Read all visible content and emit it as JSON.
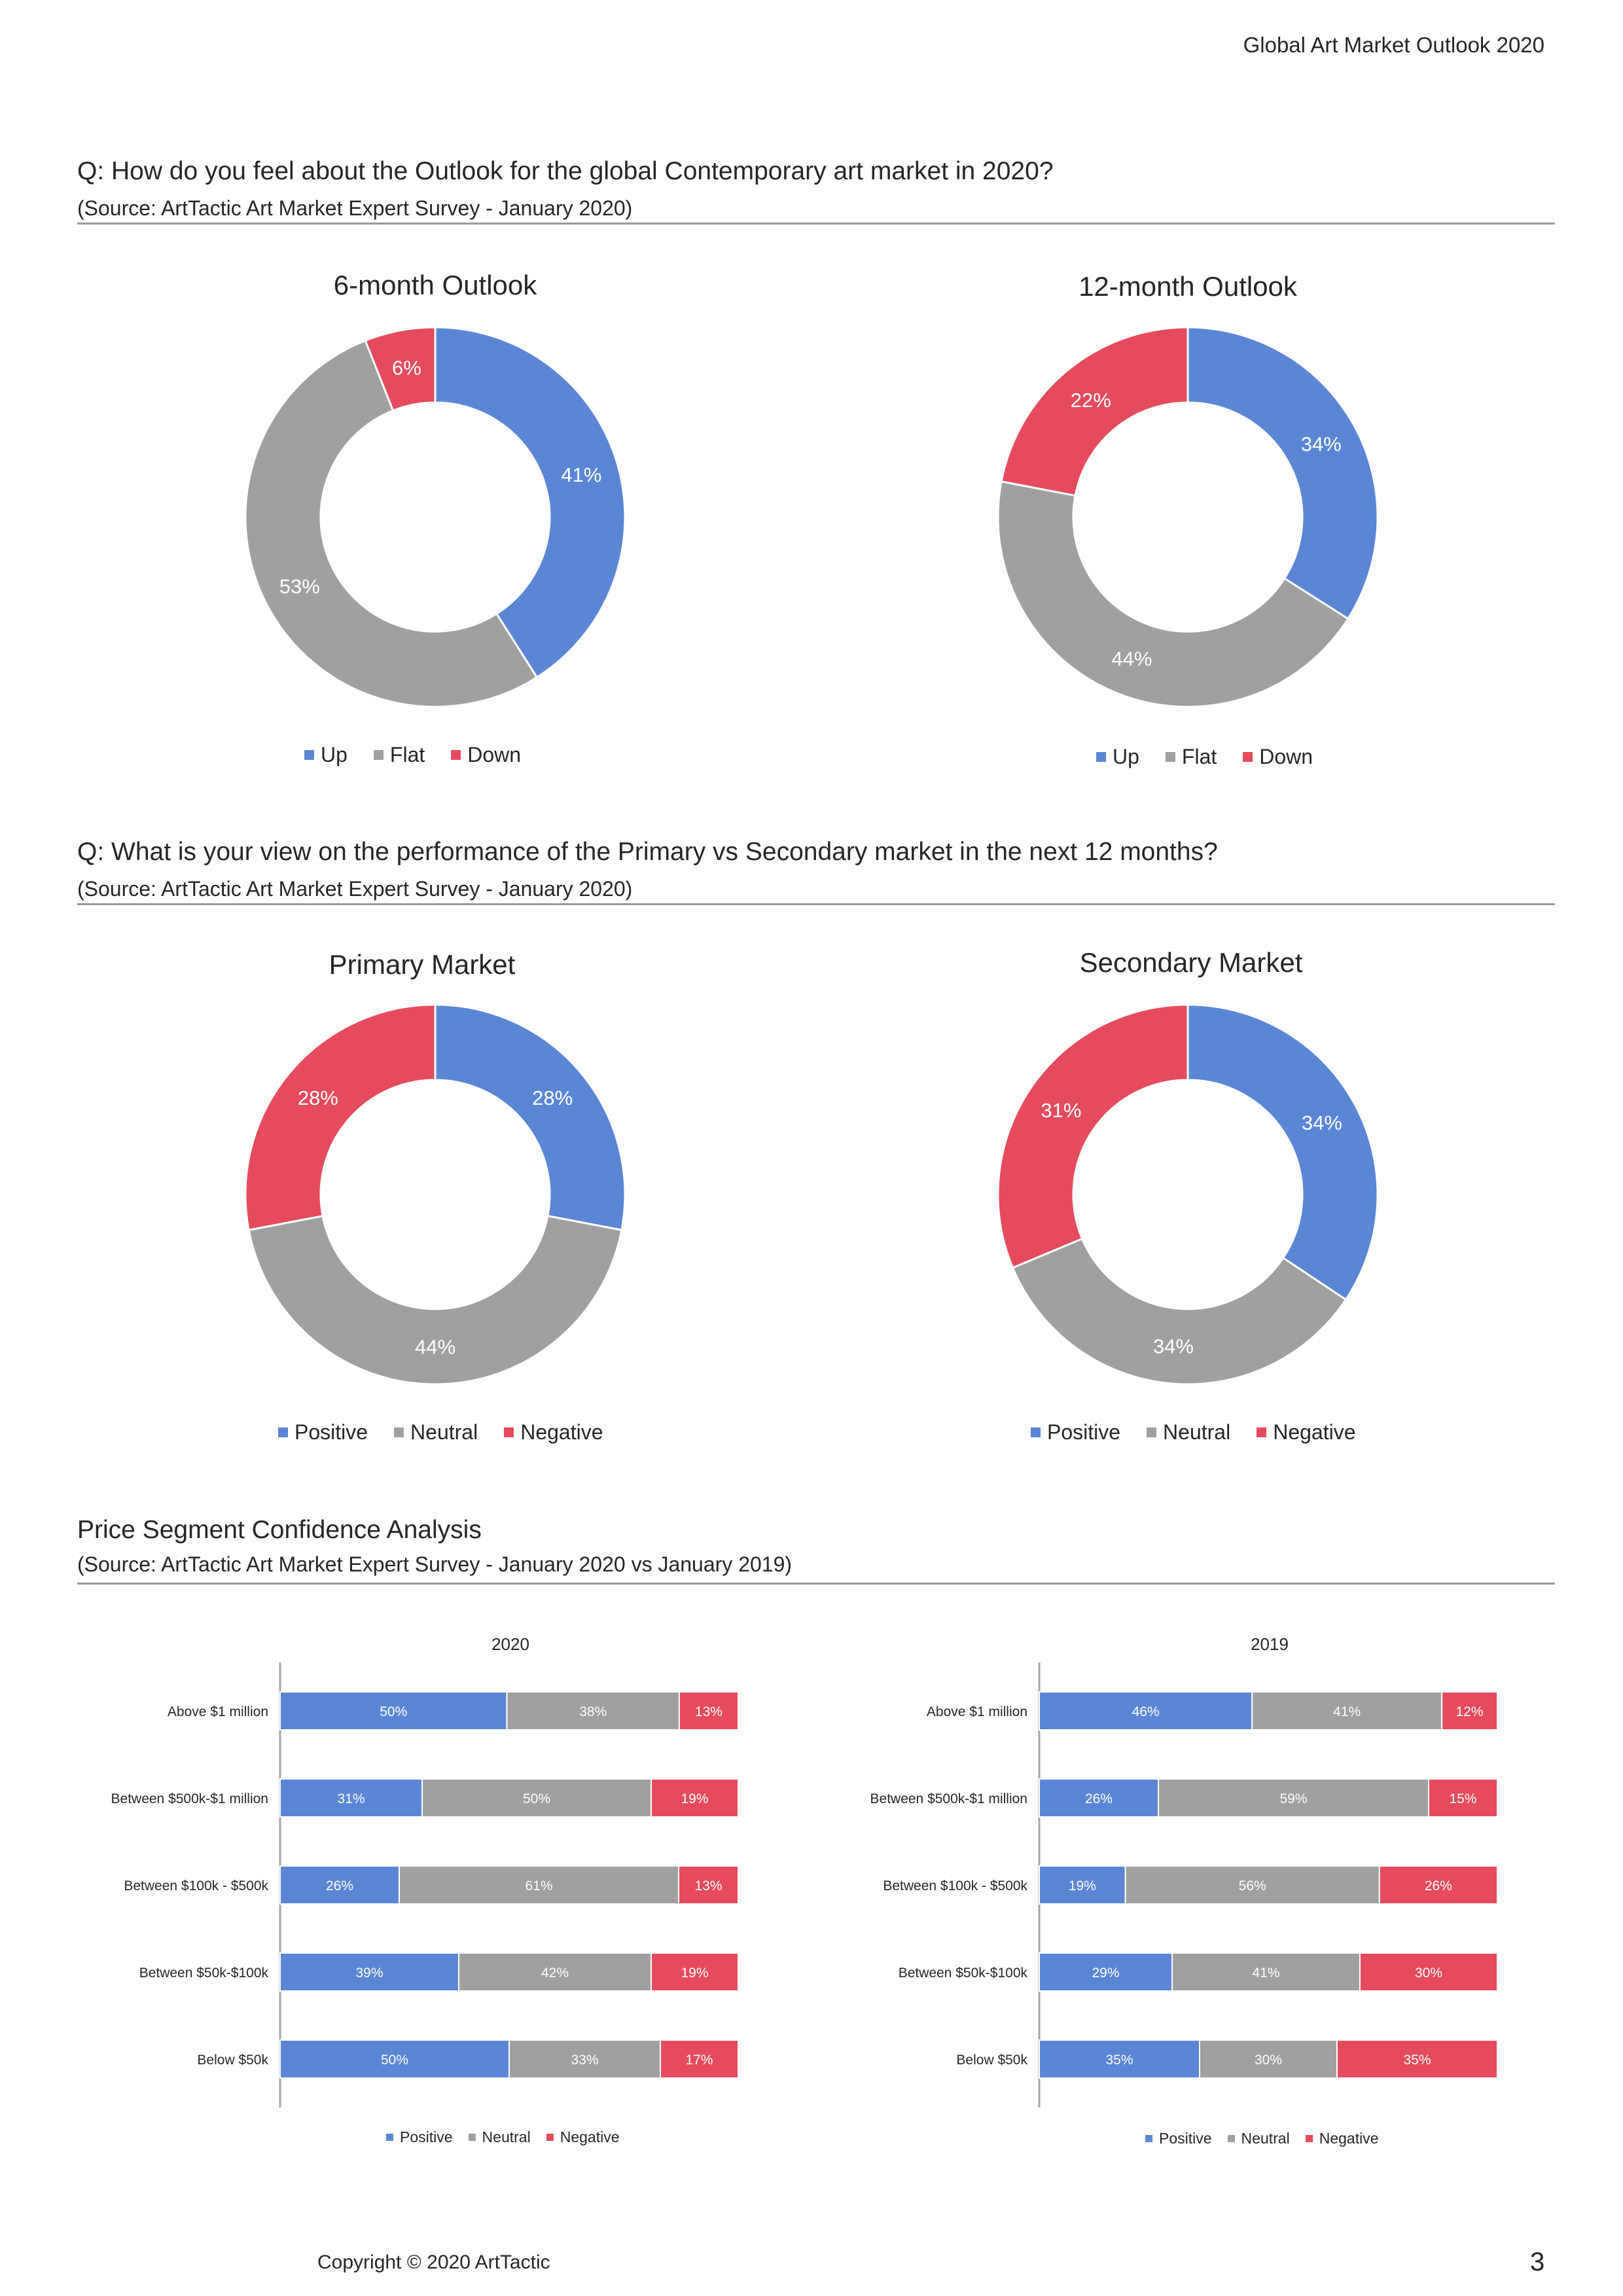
{
  "header": {
    "title": "Global Art Market Outlook 2020"
  },
  "colors": {
    "blue": "#5B86D6",
    "gray": "#A0A0A0",
    "red": "#E54B5C"
  },
  "section1": {
    "question": "Q: How do you feel about the Outlook for the global Contemporary art market in 2020?",
    "source": "(Source: ArtTactic Art Market Expert Survey - January 2020)"
  },
  "section2": {
    "question": "Q: What is your view on the performance of the Primary vs Secondary market in the next 12 months?",
    "source": "(Source: ArtTactic Art Market Expert Survey - January 2020)"
  },
  "section3": {
    "title": "Price Segment Confidence Analysis",
    "source": "(Source: ArtTactic Art Market Expert Survey - January 2020 vs January 2019)"
  },
  "chart_data": [
    {
      "type": "pie",
      "title": "6-month Outlook",
      "categories": [
        "Up",
        "Flat",
        "Down"
      ],
      "values": [
        41,
        53,
        6
      ],
      "labels": [
        "41%",
        "53%",
        "6%"
      ],
      "legend": "bottom"
    },
    {
      "type": "pie",
      "title": "12-month Outlook",
      "categories": [
        "Up",
        "Flat",
        "Down"
      ],
      "values": [
        34,
        44,
        22
      ],
      "labels": [
        "34%",
        "44%",
        "22%"
      ],
      "legend": "bottom"
    },
    {
      "type": "pie",
      "title": "Primary Market",
      "categories": [
        "Positive",
        "Neutral",
        "Negative"
      ],
      "values": [
        28,
        44,
        28
      ],
      "labels": [
        "28%",
        "44%",
        "28%"
      ],
      "legend": "bottom"
    },
    {
      "type": "pie",
      "title": "Secondary Market",
      "categories": [
        "Positive",
        "Neutral",
        "Negative"
      ],
      "values": [
        34,
        34,
        31
      ],
      "labels": [
        "34%",
        "34%",
        "31%"
      ],
      "legend": "bottom"
    },
    {
      "type": "bar",
      "title": "2020",
      "categories": [
        "Above $1 million",
        "Between $500k-$1 million",
        "Between $100k - $500k",
        "Between $50k-$100k",
        "Below $50k"
      ],
      "series": [
        {
          "name": "Positive",
          "values": [
            50,
            31,
            26,
            39,
            50
          ],
          "labels": [
            "50%",
            "31%",
            "26%",
            "39%",
            "50%"
          ]
        },
        {
          "name": "Neutral",
          "values": [
            38,
            50,
            61,
            42,
            33
          ],
          "labels": [
            "38%",
            "50%",
            "61%",
            "42%",
            "33%"
          ]
        },
        {
          "name": "Negative",
          "values": [
            13,
            19,
            13,
            19,
            17
          ],
          "labels": [
            "13%",
            "19%",
            "13%",
            "19%",
            "17%"
          ]
        }
      ],
      "stacked": true,
      "legend": "bottom"
    },
    {
      "type": "bar",
      "title": "2019",
      "categories": [
        "Above $1 million",
        "Between $500k-$1 million",
        "Between $100k - $500k",
        "Between $50k-$100k",
        "Below $50k"
      ],
      "series": [
        {
          "name": "Positive",
          "values": [
            46,
            26,
            19,
            29,
            35
          ],
          "labels": [
            "46%",
            "26%",
            "19%",
            "29%",
            "35%"
          ]
        },
        {
          "name": "Neutral",
          "values": [
            41,
            59,
            56,
            41,
            30
          ],
          "labels": [
            "41%",
            "59%",
            "56%",
            "41%",
            "30%"
          ]
        },
        {
          "name": "Negative",
          "values": [
            12,
            15,
            26,
            30,
            35
          ],
          "labels": [
            "12%",
            "15%",
            "26%",
            "30%",
            "35%"
          ]
        }
      ],
      "stacked": true,
      "legend": "bottom"
    }
  ],
  "footer": {
    "copyright": "Copyright © 2020 ArtTactic",
    "page_number": "3"
  }
}
